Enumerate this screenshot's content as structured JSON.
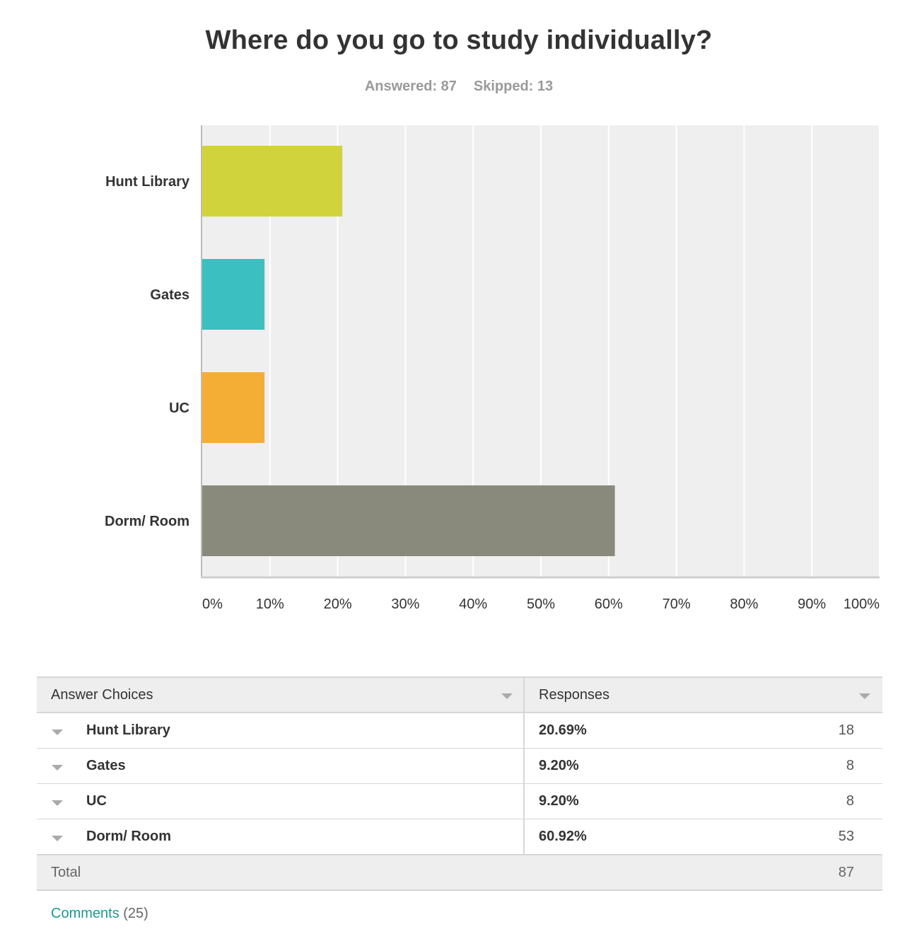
{
  "title": "Where do you go to study individually?",
  "answered_label": "Answered: 87",
  "skipped_label": "Skipped: 13",
  "chart_data": {
    "type": "bar",
    "orientation": "horizontal",
    "categories": [
      "Hunt Library",
      "Gates",
      "UC",
      "Dorm/ Room"
    ],
    "values": [
      20.69,
      9.2,
      9.2,
      60.92
    ],
    "colors": [
      "#d0d33c",
      "#3cbfc0",
      "#f5ae35",
      "#898a7c"
    ],
    "xlim": [
      0,
      100
    ],
    "xticks": [
      "0%",
      "10%",
      "20%",
      "30%",
      "40%",
      "50%",
      "60%",
      "70%",
      "80%",
      "90%",
      "100%"
    ],
    "grid": true,
    "background": "#efefef"
  },
  "table": {
    "header_choices": "Answer Choices",
    "header_responses": "Responses",
    "rows": [
      {
        "label": "Hunt Library",
        "percent": "20.69%",
        "count": "18"
      },
      {
        "label": "Gates",
        "percent": "9.20%",
        "count": "8"
      },
      {
        "label": "UC",
        "percent": "9.20%",
        "count": "8"
      },
      {
        "label": "Dorm/ Room",
        "percent": "60.92%",
        "count": "53"
      }
    ],
    "total_label": "Total",
    "total_count": "87"
  },
  "comments": {
    "label": "Comments",
    "count": "(25)"
  }
}
